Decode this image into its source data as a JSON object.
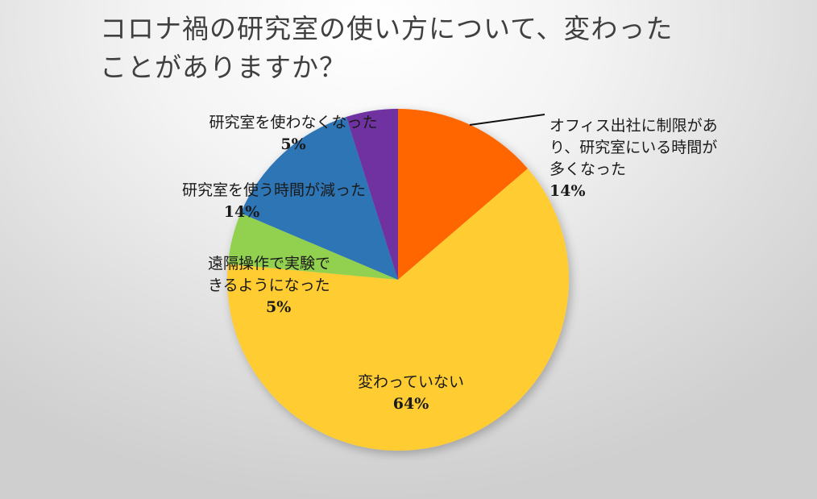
{
  "chart_data": {
    "type": "pie",
    "title": "コロナ禍の研究室の使い方について、変わったことがありますか？",
    "slices": [
      {
        "label": "オフィス出社に制限があり、研究室にいる時間が多くなった",
        "percent": 14,
        "color": "#FF6600"
      },
      {
        "label": "変わっていない",
        "percent": 64,
        "color": "#FFCC33"
      },
      {
        "label": "遠隔操作で実験できるようになった",
        "percent": 5,
        "color": "#92D050"
      },
      {
        "label": "研究室を使う時間が減った",
        "percent": 14,
        "color": "#2E75B6"
      },
      {
        "label": "研究室を使わなくなった",
        "percent": 5,
        "color": "#7030A0"
      }
    ],
    "legend": "none (data labels)",
    "start_angle_deg": 0,
    "direction": "clockwise"
  },
  "title_line1": "コロナ禍の研究室の使い方について、変わった",
  "title_line2": "ことがありますか？",
  "labels": {
    "office": {
      "text": "オフィス出社に制限があ\nり、研究室にいる時間が\n多くなった",
      "pct": "14%"
    },
    "unchanged": {
      "text": "変わっていない",
      "pct": "64%"
    },
    "remote": {
      "text": "遠隔操作で実験で\nきるようになった",
      "pct": "5%"
    },
    "reduced": {
      "text": "研究室を使う時間が減った",
      "pct": "14%"
    },
    "unused": {
      "text": "研究室を使わなくなった",
      "pct": "5%"
    }
  }
}
